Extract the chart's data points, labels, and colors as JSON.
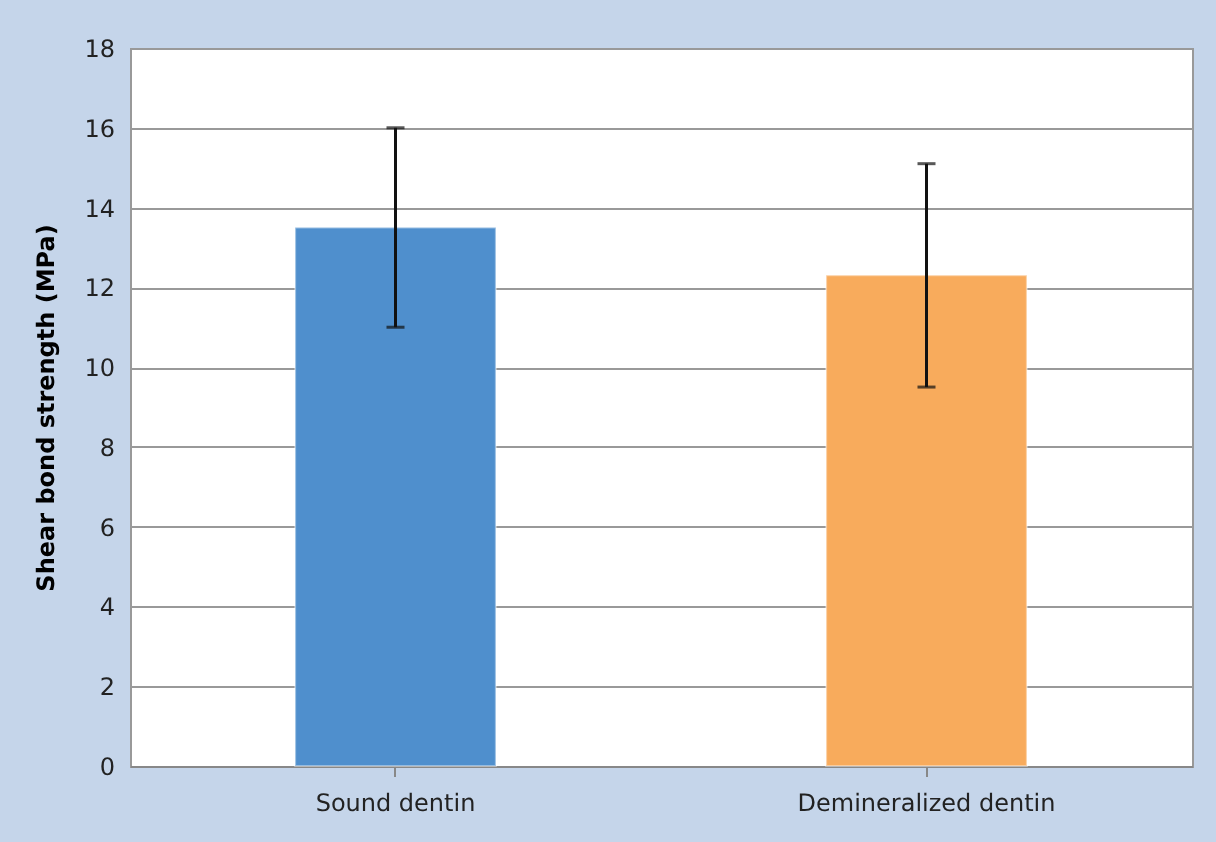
{
  "chart_data": {
    "type": "bar",
    "ylabel": "Shear bond strength (MPa)",
    "categories": [
      "Sound dentin",
      "Demineralized dentin"
    ],
    "values": [
      13.5,
      12.3
    ],
    "colors": [
      "#4f8fcd",
      "#f8ab5c"
    ],
    "errors": [
      [
        11,
        16
      ],
      [
        9.5,
        15.1
      ]
    ],
    "ylim": [
      0,
      18
    ],
    "yticks": [
      0,
      2,
      4,
      6,
      8,
      10,
      12,
      14,
      16,
      18
    ],
    "grid": "y"
  }
}
